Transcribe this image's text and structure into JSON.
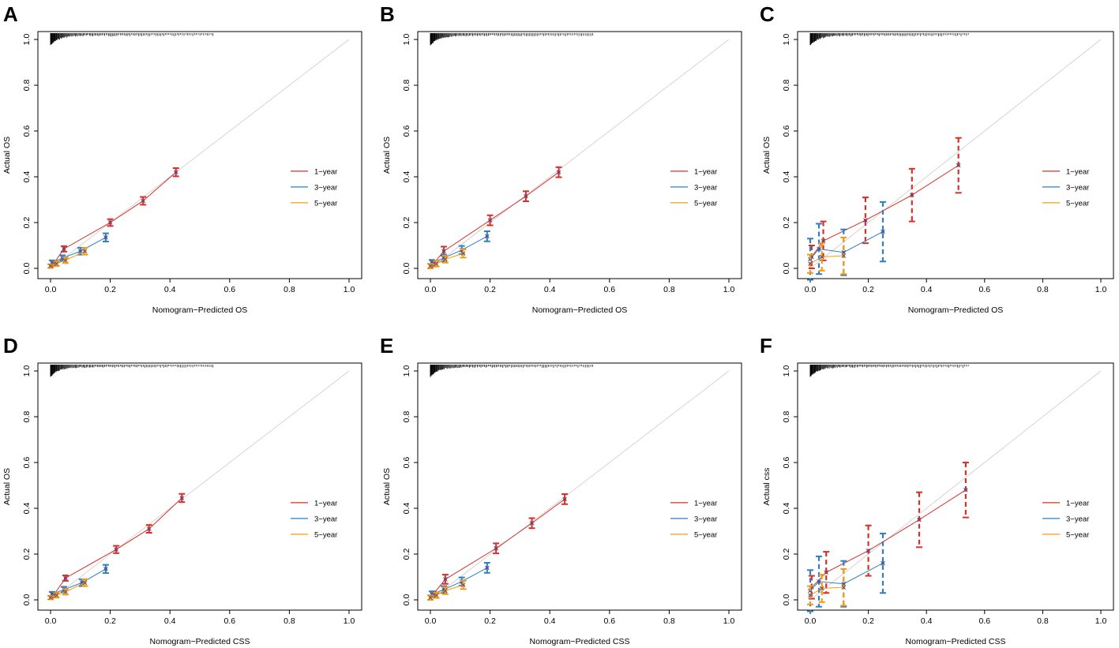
{
  "colors": {
    "one_year": "#d73027",
    "three_year": "#2f7fc1",
    "five_year": "#f39c12",
    "ideal": "#cccccc",
    "axis": "#000000"
  },
  "chart_data": [
    {
      "type": "line",
      "panel": "A",
      "xlabel": "Nomogram−Predicted  OS",
      "ylabel": "Actual  OS",
      "xlim": [
        0,
        1
      ],
      "ylim": [
        0,
        1
      ],
      "xticks": [
        "0.0",
        "0.2",
        "0.4",
        "0.6",
        "0.8",
        "1.0"
      ],
      "yticks": [
        "0.0",
        "0.2",
        "0.4",
        "0.6",
        "0.8",
        "1.0"
      ],
      "legend": [
        "1−year",
        "3−year",
        "5−year"
      ],
      "series": [
        {
          "name": "1−year",
          "x": [
            0.01,
            0.045,
            0.2,
            0.31,
            0.42
          ],
          "y": [
            0.02,
            0.085,
            0.2,
            0.295,
            0.42
          ],
          "err": [
            0.01,
            0.012,
            0.015,
            0.017,
            0.018
          ]
        },
        {
          "name": "3−year",
          "x": [
            0.005,
            0.04,
            0.1,
            0.185
          ],
          "y": [
            0.025,
            0.045,
            0.075,
            0.135
          ],
          "err": [
            0.01,
            0.012,
            0.015,
            0.018
          ]
        },
        {
          "name": "5−year",
          "x": [
            0.0,
            0.02,
            0.05,
            0.115
          ],
          "y": [
            0.01,
            0.02,
            0.035,
            0.075
          ],
          "err": [
            0.008,
            0.01,
            0.012,
            0.015
          ]
        }
      ]
    },
    {
      "type": "line",
      "panel": "B",
      "xlabel": "Nomogram−Predicted  OS",
      "ylabel": "Actual  OS",
      "xlim": [
        0,
        1
      ],
      "ylim": [
        0,
        1
      ],
      "xticks": [
        "0.0",
        "0.2",
        "0.4",
        "0.6",
        "0.8",
        "1.0"
      ],
      "yticks": [
        "0.0",
        "0.2",
        "0.4",
        "0.6",
        "0.8",
        "1.0"
      ],
      "legend": [
        "1−year",
        "3−year",
        "5−year"
      ],
      "series": [
        {
          "name": "1−year",
          "x": [
            0.01,
            0.045,
            0.2,
            0.32,
            0.43
          ],
          "y": [
            0.02,
            0.075,
            0.21,
            0.315,
            0.42
          ],
          "err": [
            0.012,
            0.02,
            0.022,
            0.022,
            0.022
          ]
        },
        {
          "name": "3−year",
          "x": [
            0.005,
            0.045,
            0.105,
            0.19
          ],
          "y": [
            0.025,
            0.045,
            0.08,
            0.14
          ],
          "err": [
            0.012,
            0.015,
            0.018,
            0.022
          ]
        },
        {
          "name": "5−year",
          "x": [
            0.0,
            0.02,
            0.05,
            0.11
          ],
          "y": [
            0.01,
            0.02,
            0.04,
            0.065
          ],
          "err": [
            0.01,
            0.012,
            0.015,
            0.018
          ]
        }
      ]
    },
    {
      "type": "line",
      "panel": "C",
      "xlabel": "Nomogram−Predicted  OS",
      "ylabel": "Actual  OS",
      "xlim": [
        0,
        1
      ],
      "ylim": [
        0,
        1
      ],
      "xticks": [
        "0.0",
        "0.2",
        "0.4",
        "0.6",
        "0.8",
        "1.0"
      ],
      "yticks": [
        "0.0",
        "0.2",
        "0.4",
        "0.6",
        "0.8",
        "1.0"
      ],
      "legend": [
        "1−year",
        "3−year",
        "5−year"
      ],
      "series": [
        {
          "name": "1−year",
          "x": [
            0.005,
            0.045,
            0.19,
            0.35,
            0.51
          ],
          "y": [
            0.05,
            0.12,
            0.21,
            0.32,
            0.45
          ],
          "err": [
            0.05,
            0.085,
            0.1,
            0.115,
            0.12
          ]
        },
        {
          "name": "3−year",
          "x": [
            0.0,
            0.03,
            0.115,
            0.25
          ],
          "y": [
            0.04,
            0.085,
            0.07,
            0.16
          ],
          "err": [
            0.09,
            0.11,
            0.1,
            0.13
          ]
        },
        {
          "name": "5−year",
          "x": [
            0.0,
            0.04,
            0.115
          ],
          "y": [
            0.02,
            0.05,
            0.055
          ],
          "err": [
            0.04,
            0.06,
            0.08
          ]
        }
      ]
    },
    {
      "type": "line",
      "panel": "D",
      "xlabel": "Nomogram−Predicted  CSS",
      "ylabel": "Actual  OS",
      "xlim": [
        0,
        1
      ],
      "ylim": [
        0,
        1
      ],
      "xticks": [
        "0.0",
        "0.2",
        "0.4",
        "0.6",
        "0.8",
        "1.0"
      ],
      "yticks": [
        "0.0",
        "0.2",
        "0.4",
        "0.6",
        "0.8",
        "1.0"
      ],
      "legend": [
        "1−year",
        "3−year",
        "5−year"
      ],
      "series": [
        {
          "name": "1−year",
          "x": [
            0.01,
            0.05,
            0.22,
            0.33,
            0.44
          ],
          "y": [
            0.02,
            0.095,
            0.22,
            0.31,
            0.445
          ],
          "err": [
            0.01,
            0.012,
            0.016,
            0.017,
            0.018
          ]
        },
        {
          "name": "3−year",
          "x": [
            0.005,
            0.045,
            0.105,
            0.185
          ],
          "y": [
            0.025,
            0.045,
            0.075,
            0.135
          ],
          "err": [
            0.01,
            0.012,
            0.015,
            0.018
          ]
        },
        {
          "name": "5−year",
          "x": [
            0.0,
            0.02,
            0.05,
            0.115
          ],
          "y": [
            0.01,
            0.02,
            0.035,
            0.075
          ],
          "err": [
            0.008,
            0.01,
            0.012,
            0.015
          ]
        }
      ]
    },
    {
      "type": "line",
      "panel": "E",
      "xlabel": "Nomogram−Predicted  CSS",
      "ylabel": "Actual  OS",
      "xlim": [
        0,
        1
      ],
      "ylim": [
        0,
        1
      ],
      "xticks": [
        "0.0",
        "0.2",
        "0.4",
        "0.6",
        "0.8",
        "1.0"
      ],
      "yticks": [
        "0.0",
        "0.2",
        "0.4",
        "0.6",
        "0.8",
        "1.0"
      ],
      "legend": [
        "1−year",
        "3−year",
        "5−year"
      ],
      "series": [
        {
          "name": "1−year",
          "x": [
            0.01,
            0.05,
            0.22,
            0.34,
            0.45
          ],
          "y": [
            0.025,
            0.09,
            0.225,
            0.335,
            0.44
          ],
          "err": [
            0.012,
            0.02,
            0.022,
            0.022,
            0.022
          ]
        },
        {
          "name": "3−year",
          "x": [
            0.005,
            0.045,
            0.105,
            0.19
          ],
          "y": [
            0.025,
            0.045,
            0.08,
            0.14
          ],
          "err": [
            0.012,
            0.015,
            0.018,
            0.022
          ]
        },
        {
          "name": "5−year",
          "x": [
            0.0,
            0.02,
            0.05,
            0.11
          ],
          "y": [
            0.01,
            0.02,
            0.04,
            0.065
          ],
          "err": [
            0.01,
            0.012,
            0.015,
            0.018
          ]
        }
      ]
    },
    {
      "type": "line",
      "panel": "F",
      "xlabel": "Nomogram−Predicted  CSS",
      "ylabel": "Actual  css",
      "xlim": [
        0,
        1
      ],
      "ylim": [
        0,
        1
      ],
      "xticks": [
        "0.0",
        "0.2",
        "0.4",
        "0.6",
        "0.8",
        "1.0"
      ],
      "yticks": [
        "0.0",
        "0.2",
        "0.4",
        "0.6",
        "0.8",
        "1.0"
      ],
      "legend": [
        "1−year",
        "3−year",
        "5−year"
      ],
      "series": [
        {
          "name": "1−year",
          "x": [
            0.005,
            0.055,
            0.2,
            0.375,
            0.535
          ],
          "y": [
            0.055,
            0.12,
            0.215,
            0.35,
            0.48
          ],
          "err": [
            0.05,
            0.09,
            0.11,
            0.12,
            0.12
          ]
        },
        {
          "name": "3−year",
          "x": [
            0.0,
            0.03,
            0.115,
            0.25
          ],
          "y": [
            0.04,
            0.08,
            0.07,
            0.16
          ],
          "err": [
            0.09,
            0.11,
            0.1,
            0.13
          ]
        },
        {
          "name": "5−year",
          "x": [
            0.0,
            0.04,
            0.115
          ],
          "y": [
            0.02,
            0.05,
            0.055
          ],
          "err": [
            0.04,
            0.06,
            0.08
          ]
        }
      ]
    }
  ]
}
